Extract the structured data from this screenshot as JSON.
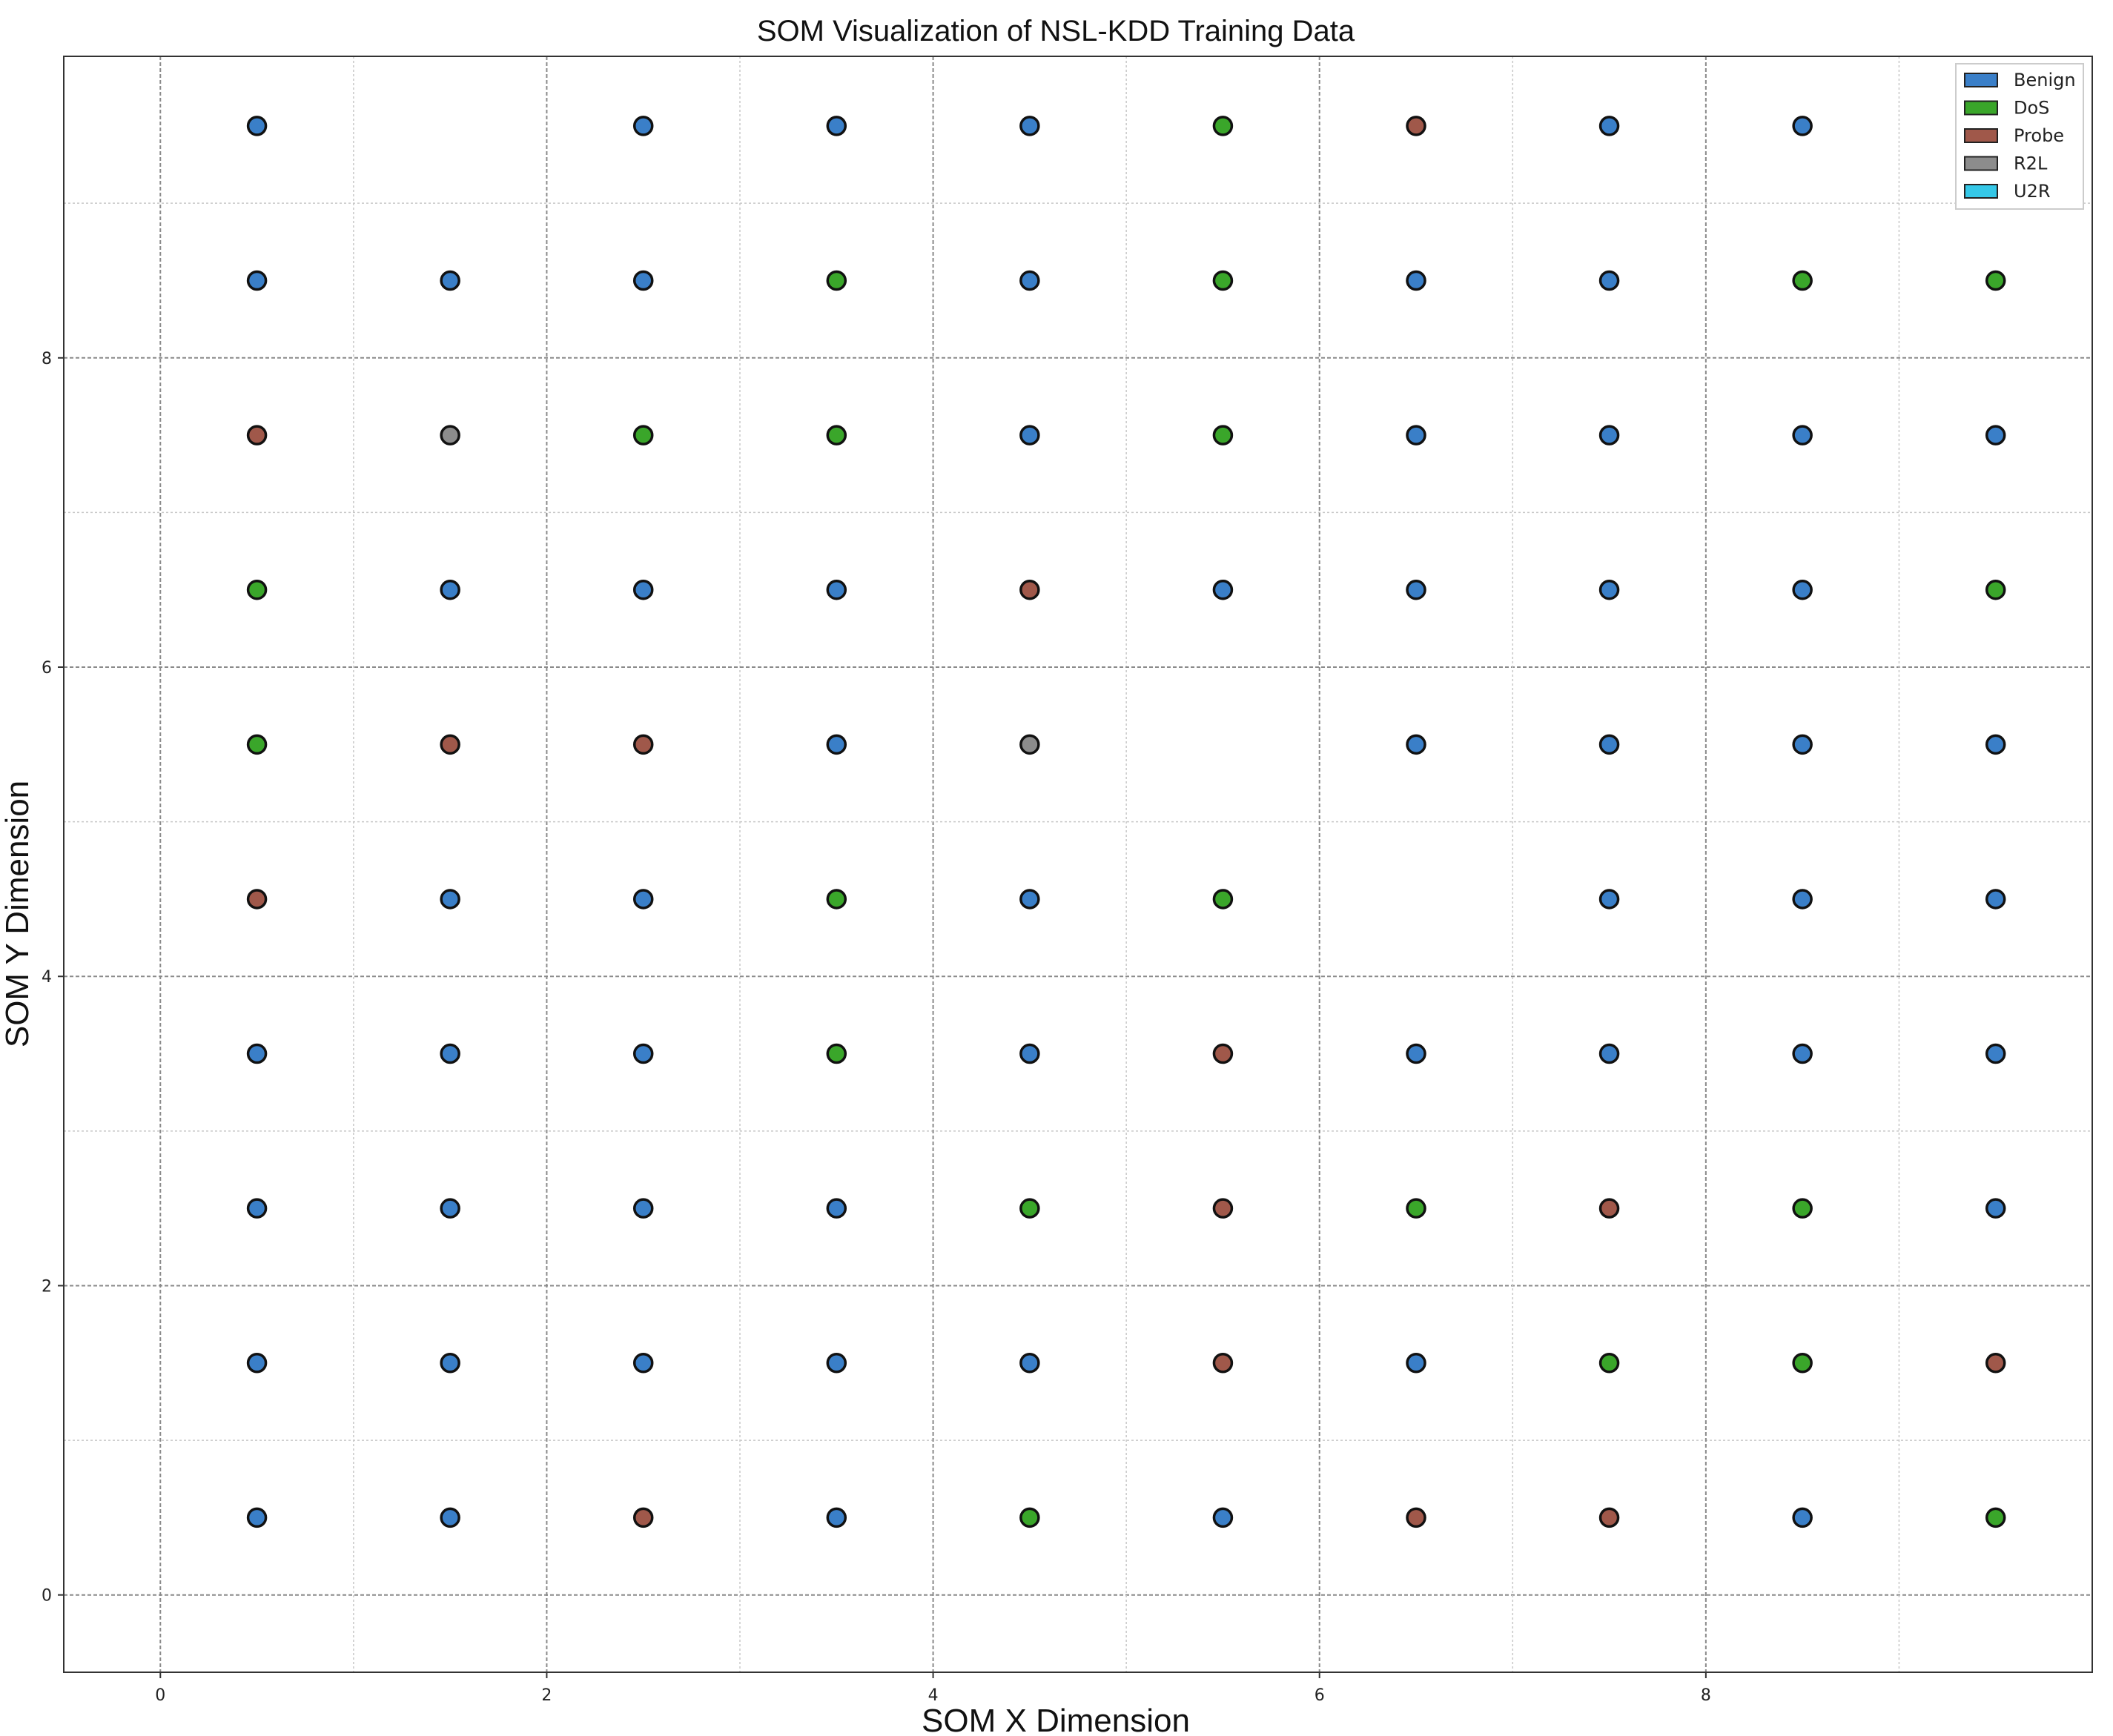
{
  "chart_data": {
    "type": "scatter",
    "title": "SOM Visualization of NSL-KDD Training Data",
    "xlabel": "SOM  X Dimension",
    "ylabel": "SOM  Y Dimension",
    "xlim": [
      -0.5,
      10.0
    ],
    "ylim": [
      -0.5,
      9.95
    ],
    "xticks": [
      0,
      2,
      4,
      6,
      8
    ],
    "yticks": [
      0,
      2,
      4,
      6,
      8
    ],
    "grid": true,
    "legend_position": "top-right",
    "categories": [
      {
        "name": "Benign",
        "color": "#3a7fc8"
      },
      {
        "name": "DoS",
        "color": "#3aa62a"
      },
      {
        "name": "Probe",
        "color": "#a0584a"
      },
      {
        "name": "R2L",
        "color": "#8c8c8c"
      },
      {
        "name": "U2R",
        "color": "#35c8e8"
      }
    ],
    "points": [
      {
        "x": 0.5,
        "y": 9.5,
        "class": "Benign"
      },
      {
        "x": 2.5,
        "y": 9.5,
        "class": "Benign"
      },
      {
        "x": 3.5,
        "y": 9.5,
        "class": "Benign"
      },
      {
        "x": 4.5,
        "y": 9.5,
        "class": "Benign"
      },
      {
        "x": 5.5,
        "y": 9.5,
        "class": "DoS"
      },
      {
        "x": 6.5,
        "y": 9.5,
        "class": "Probe"
      },
      {
        "x": 7.5,
        "y": 9.5,
        "class": "Benign"
      },
      {
        "x": 8.5,
        "y": 9.5,
        "class": "Benign"
      },
      {
        "x": 0.5,
        "y": 8.5,
        "class": "Benign"
      },
      {
        "x": 1.5,
        "y": 8.5,
        "class": "Benign"
      },
      {
        "x": 2.5,
        "y": 8.5,
        "class": "Benign"
      },
      {
        "x": 3.5,
        "y": 8.5,
        "class": "DoS"
      },
      {
        "x": 4.5,
        "y": 8.5,
        "class": "Benign"
      },
      {
        "x": 5.5,
        "y": 8.5,
        "class": "DoS"
      },
      {
        "x": 6.5,
        "y": 8.5,
        "class": "Benign"
      },
      {
        "x": 7.5,
        "y": 8.5,
        "class": "Benign"
      },
      {
        "x": 8.5,
        "y": 8.5,
        "class": "DoS"
      },
      {
        "x": 9.5,
        "y": 8.5,
        "class": "DoS"
      },
      {
        "x": 0.5,
        "y": 7.5,
        "class": "Probe"
      },
      {
        "x": 1.5,
        "y": 7.5,
        "class": "R2L"
      },
      {
        "x": 2.5,
        "y": 7.5,
        "class": "DoS"
      },
      {
        "x": 3.5,
        "y": 7.5,
        "class": "DoS"
      },
      {
        "x": 4.5,
        "y": 7.5,
        "class": "Benign"
      },
      {
        "x": 5.5,
        "y": 7.5,
        "class": "DoS"
      },
      {
        "x": 6.5,
        "y": 7.5,
        "class": "Benign"
      },
      {
        "x": 7.5,
        "y": 7.5,
        "class": "Benign"
      },
      {
        "x": 8.5,
        "y": 7.5,
        "class": "Benign"
      },
      {
        "x": 9.5,
        "y": 7.5,
        "class": "Benign"
      },
      {
        "x": 0.5,
        "y": 6.5,
        "class": "DoS"
      },
      {
        "x": 1.5,
        "y": 6.5,
        "class": "Benign"
      },
      {
        "x": 2.5,
        "y": 6.5,
        "class": "Benign"
      },
      {
        "x": 3.5,
        "y": 6.5,
        "class": "Benign"
      },
      {
        "x": 4.5,
        "y": 6.5,
        "class": "Probe"
      },
      {
        "x": 5.5,
        "y": 6.5,
        "class": "Benign"
      },
      {
        "x": 6.5,
        "y": 6.5,
        "class": "Benign"
      },
      {
        "x": 7.5,
        "y": 6.5,
        "class": "Benign"
      },
      {
        "x": 8.5,
        "y": 6.5,
        "class": "Benign"
      },
      {
        "x": 9.5,
        "y": 6.5,
        "class": "DoS"
      },
      {
        "x": 0.5,
        "y": 5.5,
        "class": "DoS"
      },
      {
        "x": 1.5,
        "y": 5.5,
        "class": "Probe"
      },
      {
        "x": 2.5,
        "y": 5.5,
        "class": "Probe"
      },
      {
        "x": 3.5,
        "y": 5.5,
        "class": "Benign"
      },
      {
        "x": 4.5,
        "y": 5.5,
        "class": "R2L"
      },
      {
        "x": 6.5,
        "y": 5.5,
        "class": "Benign"
      },
      {
        "x": 7.5,
        "y": 5.5,
        "class": "Benign"
      },
      {
        "x": 8.5,
        "y": 5.5,
        "class": "Benign"
      },
      {
        "x": 9.5,
        "y": 5.5,
        "class": "Benign"
      },
      {
        "x": 0.5,
        "y": 4.5,
        "class": "Probe"
      },
      {
        "x": 1.5,
        "y": 4.5,
        "class": "Benign"
      },
      {
        "x": 2.5,
        "y": 4.5,
        "class": "Benign"
      },
      {
        "x": 3.5,
        "y": 4.5,
        "class": "DoS"
      },
      {
        "x": 4.5,
        "y": 4.5,
        "class": "Benign"
      },
      {
        "x": 5.5,
        "y": 4.5,
        "class": "DoS"
      },
      {
        "x": 7.5,
        "y": 4.5,
        "class": "Benign"
      },
      {
        "x": 8.5,
        "y": 4.5,
        "class": "Benign"
      },
      {
        "x": 9.5,
        "y": 4.5,
        "class": "Benign"
      },
      {
        "x": 0.5,
        "y": 3.5,
        "class": "Benign"
      },
      {
        "x": 1.5,
        "y": 3.5,
        "class": "Benign"
      },
      {
        "x": 2.5,
        "y": 3.5,
        "class": "Benign"
      },
      {
        "x": 3.5,
        "y": 3.5,
        "class": "DoS"
      },
      {
        "x": 4.5,
        "y": 3.5,
        "class": "Benign"
      },
      {
        "x": 5.5,
        "y": 3.5,
        "class": "Probe"
      },
      {
        "x": 6.5,
        "y": 3.5,
        "class": "Benign"
      },
      {
        "x": 7.5,
        "y": 3.5,
        "class": "Benign"
      },
      {
        "x": 8.5,
        "y": 3.5,
        "class": "Benign"
      },
      {
        "x": 9.5,
        "y": 3.5,
        "class": "Benign"
      },
      {
        "x": 0.5,
        "y": 2.5,
        "class": "Benign"
      },
      {
        "x": 1.5,
        "y": 2.5,
        "class": "Benign"
      },
      {
        "x": 2.5,
        "y": 2.5,
        "class": "Benign"
      },
      {
        "x": 3.5,
        "y": 2.5,
        "class": "Benign"
      },
      {
        "x": 4.5,
        "y": 2.5,
        "class": "DoS"
      },
      {
        "x": 5.5,
        "y": 2.5,
        "class": "Probe"
      },
      {
        "x": 6.5,
        "y": 2.5,
        "class": "DoS"
      },
      {
        "x": 7.5,
        "y": 2.5,
        "class": "Probe"
      },
      {
        "x": 8.5,
        "y": 2.5,
        "class": "DoS"
      },
      {
        "x": 9.5,
        "y": 2.5,
        "class": "Benign"
      },
      {
        "x": 0.5,
        "y": 1.5,
        "class": "Benign"
      },
      {
        "x": 1.5,
        "y": 1.5,
        "class": "Benign"
      },
      {
        "x": 2.5,
        "y": 1.5,
        "class": "Benign"
      },
      {
        "x": 3.5,
        "y": 1.5,
        "class": "Benign"
      },
      {
        "x": 4.5,
        "y": 1.5,
        "class": "Benign"
      },
      {
        "x": 5.5,
        "y": 1.5,
        "class": "Probe"
      },
      {
        "x": 6.5,
        "y": 1.5,
        "class": "Benign"
      },
      {
        "x": 7.5,
        "y": 1.5,
        "class": "DoS"
      },
      {
        "x": 8.5,
        "y": 1.5,
        "class": "DoS"
      },
      {
        "x": 9.5,
        "y": 1.5,
        "class": "Probe"
      },
      {
        "x": 0.5,
        "y": 0.5,
        "class": "Benign"
      },
      {
        "x": 1.5,
        "y": 0.5,
        "class": "Benign"
      },
      {
        "x": 2.5,
        "y": 0.5,
        "class": "Probe"
      },
      {
        "x": 3.5,
        "y": 0.5,
        "class": "Benign"
      },
      {
        "x": 4.5,
        "y": 0.5,
        "class": "DoS"
      },
      {
        "x": 5.5,
        "y": 0.5,
        "class": "Benign"
      },
      {
        "x": 6.5,
        "y": 0.5,
        "class": "Probe"
      },
      {
        "x": 7.5,
        "y": 0.5,
        "class": "Probe"
      },
      {
        "x": 8.5,
        "y": 0.5,
        "class": "Benign"
      },
      {
        "x": 9.5,
        "y": 0.5,
        "class": "DoS"
      }
    ]
  }
}
